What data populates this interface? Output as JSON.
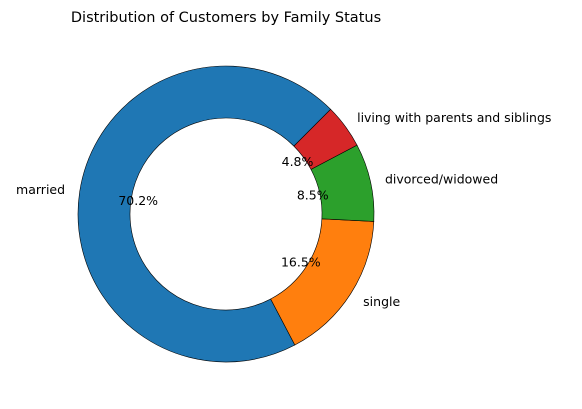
{
  "chart_data": {
    "type": "pie",
    "style": "donut",
    "title": "Distribution of Customers by Family Status",
    "start_angle_deg": 45,
    "direction": "counterclockwise",
    "edge_color": "#000000",
    "slices": [
      {
        "label": "married",
        "pct_label": "70.2%",
        "value": 70.2,
        "color": "#1f77b4"
      },
      {
        "label": "single",
        "pct_label": "16.5%",
        "value": 16.5,
        "color": "#ff7f0e"
      },
      {
        "label": "divorced/widowed",
        "pct_label": "8.5%",
        "value": 8.5,
        "color": "#2ca02c"
      },
      {
        "label": "living with parents and siblings",
        "pct_label": "4.8%",
        "value": 4.8,
        "color": "#d62728"
      }
    ]
  }
}
